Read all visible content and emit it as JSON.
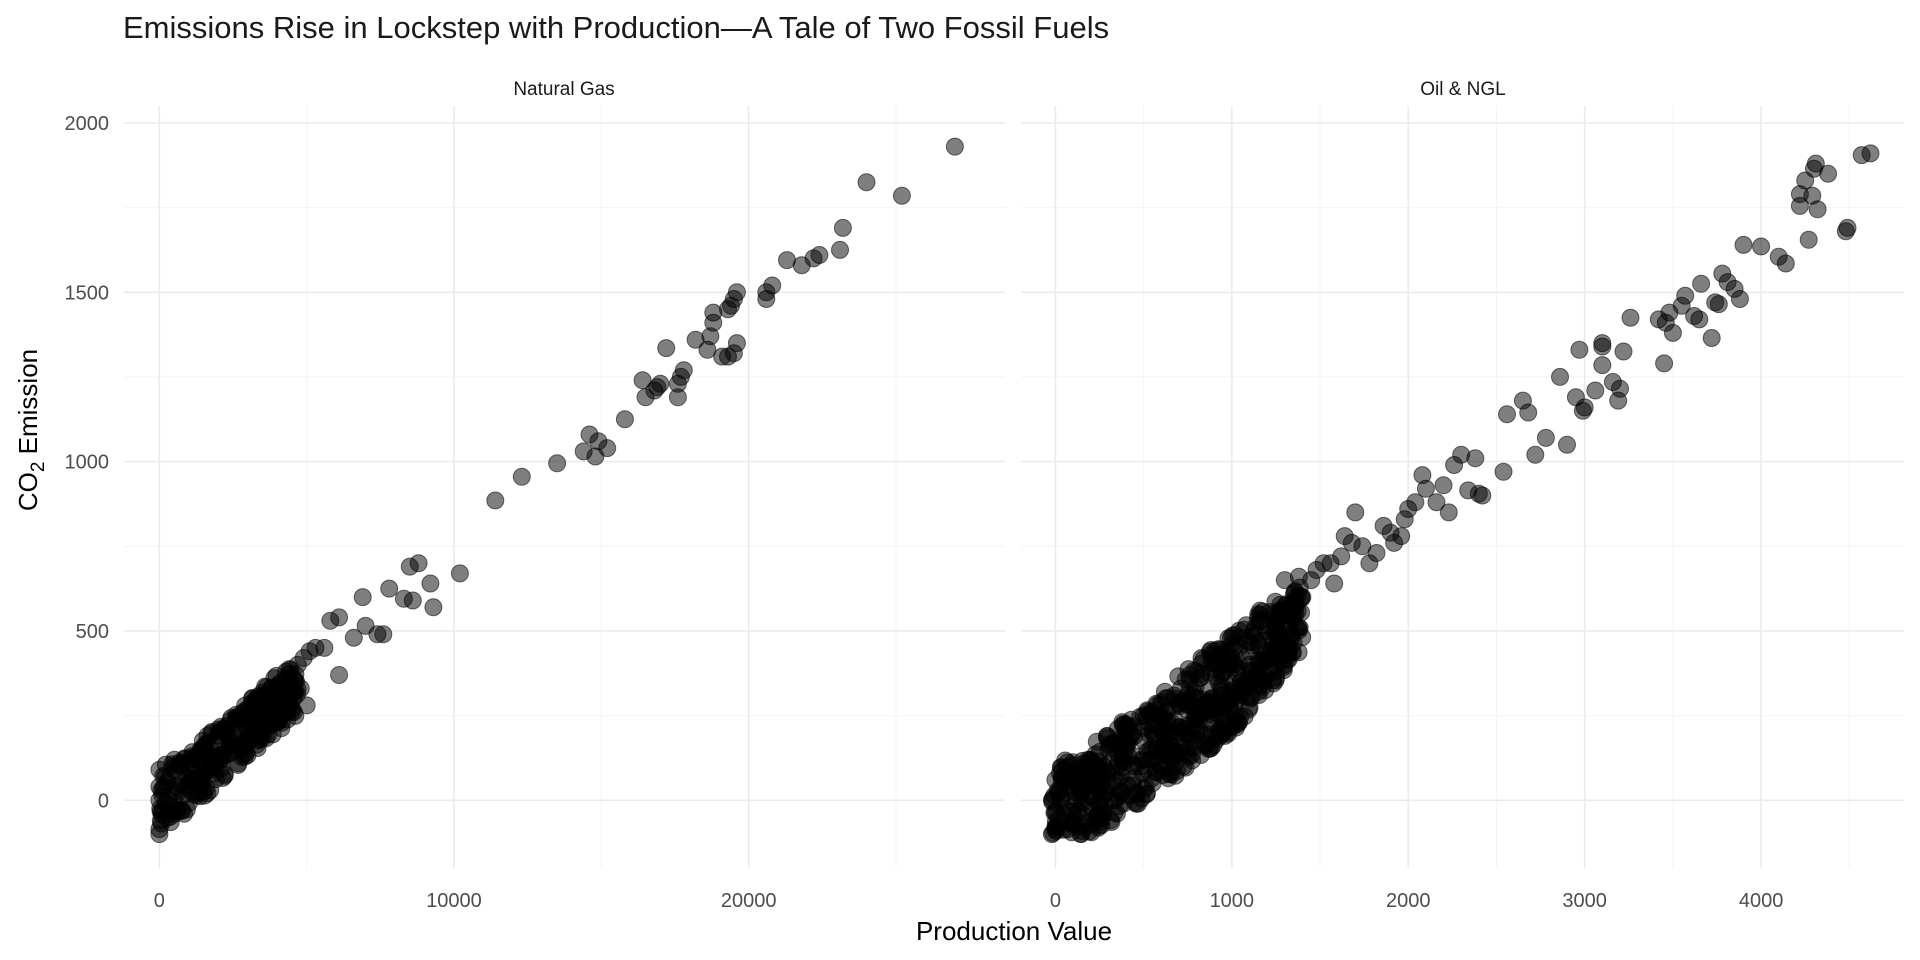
{
  "chart_data": {
    "type": "scatter",
    "title": "Emissions Rise in Lockstep with Production—A Tale of Two Fossil Fuels",
    "xlabel": "Production Value",
    "ylabel": {
      "prefix": "CO",
      "subscript": "2",
      "suffix": " Emission"
    },
    "ylim": [
      -200,
      2050
    ],
    "y_ticks": [
      0,
      500,
      1000,
      1500,
      2000
    ],
    "grid": true,
    "point_color": "#000000",
    "point_opacity": 0.5,
    "facets": [
      {
        "name": "Natural Gas",
        "xlim": [
          -1200,
          28700
        ],
        "x_ticks": [
          0,
          10000,
          20000
        ],
        "points": [
          [
            27000,
            1930
          ],
          [
            24000,
            1825
          ],
          [
            25200,
            1785
          ],
          [
            23200,
            1690
          ],
          [
            23100,
            1625
          ],
          [
            22400,
            1610
          ],
          [
            22200,
            1600
          ],
          [
            21800,
            1580
          ],
          [
            21300,
            1595
          ],
          [
            20800,
            1520
          ],
          [
            20600,
            1500
          ],
          [
            20600,
            1480
          ],
          [
            19600,
            1500
          ],
          [
            19500,
            1480
          ],
          [
            19400,
            1460
          ],
          [
            19300,
            1450
          ],
          [
            19600,
            1350
          ],
          [
            19500,
            1320
          ],
          [
            19300,
            1310
          ],
          [
            19100,
            1310
          ],
          [
            18800,
            1440
          ],
          [
            18800,
            1410
          ],
          [
            18700,
            1370
          ],
          [
            18600,
            1330
          ],
          [
            18200,
            1360
          ],
          [
            17800,
            1270
          ],
          [
            17700,
            1250
          ],
          [
            17600,
            1230
          ],
          [
            17600,
            1190
          ],
          [
            17200,
            1335
          ],
          [
            17000,
            1230
          ],
          [
            16900,
            1220
          ],
          [
            16400,
            1240
          ],
          [
            16500,
            1190
          ],
          [
            16800,
            1210
          ],
          [
            15800,
            1125
          ],
          [
            15200,
            1040
          ],
          [
            14900,
            1060
          ],
          [
            14800,
            1015
          ],
          [
            14600,
            1080
          ],
          [
            14400,
            1030
          ],
          [
            13500,
            995
          ],
          [
            12300,
            955
          ],
          [
            11400,
            885
          ],
          [
            10200,
            670
          ],
          [
            9300,
            570
          ],
          [
            9200,
            640
          ],
          [
            8800,
            700
          ],
          [
            8500,
            690
          ],
          [
            8600,
            590
          ],
          [
            8300,
            595
          ],
          [
            7800,
            625
          ],
          [
            7600,
            490
          ],
          [
            7400,
            490
          ],
          [
            7000,
            515
          ],
          [
            6900,
            600
          ],
          [
            6600,
            480
          ],
          [
            6100,
            370
          ],
          [
            6100,
            540
          ],
          [
            5800,
            530
          ],
          [
            5600,
            450
          ],
          [
            5300,
            450
          ],
          [
            5100,
            440
          ],
          [
            5000,
            280
          ],
          [
            4900,
            420
          ],
          [
            4800,
            330
          ],
          [
            4700,
            400
          ],
          [
            4500,
            270
          ],
          [
            4300,
            380
          ],
          [
            4300,
            290
          ],
          [
            4000,
            230
          ],
          [
            3900,
            360
          ],
          [
            3800,
            330
          ],
          [
            3600,
            220
          ],
          [
            3500,
            310
          ],
          [
            3300,
            200
          ],
          [
            3200,
            290
          ],
          [
            3000,
            180
          ],
          [
            2900,
            260
          ],
          [
            2700,
            160
          ],
          [
            2600,
            240
          ],
          [
            2400,
            140
          ],
          [
            2300,
            220
          ],
          [
            2100,
            120
          ],
          [
            2000,
            190
          ],
          [
            1800,
            100
          ],
          [
            1700,
            170
          ],
          [
            1500,
            80
          ],
          [
            1400,
            150
          ],
          [
            1200,
            60
          ],
          [
            1100,
            130
          ],
          [
            900,
            40
          ],
          [
            800,
            110
          ],
          [
            600,
            20
          ],
          [
            500,
            90
          ],
          [
            300,
            0
          ],
          [
            200,
            70
          ],
          [
            100,
            -30
          ],
          [
            50,
            -60
          ],
          [
            0,
            -85
          ],
          [
            0,
            40
          ],
          [
            0,
            90
          ],
          [
            0,
            0
          ],
          [
            0,
            -100
          ]
        ],
        "band": [
          {
            "x": 0,
            "y_lo": -100,
            "y_hi": 95
          },
          {
            "x": 1000,
            "y_lo": -30,
            "y_hi": 150
          },
          {
            "x": 2000,
            "y_lo": 50,
            "y_hi": 220
          },
          {
            "x": 3000,
            "y_lo": 130,
            "y_hi": 290
          },
          {
            "x": 4000,
            "y_lo": 200,
            "y_hi": 370
          },
          {
            "x": 4700,
            "y_lo": 250,
            "y_hi": 410
          }
        ],
        "band_count": 260
      },
      {
        "name": "Oil & NGL",
        "xlim": [
          -195,
          4810
        ],
        "x_ticks": [
          0,
          1000,
          2000,
          3000,
          4000
        ],
        "points": [
          [
            4620,
            1910
          ],
          [
            4570,
            1905
          ],
          [
            4490,
            1690
          ],
          [
            4480,
            1680
          ],
          [
            4380,
            1850
          ],
          [
            4310,
            1880
          ],
          [
            4300,
            1865
          ],
          [
            4290,
            1785
          ],
          [
            4250,
            1830
          ],
          [
            4220,
            1790
          ],
          [
            4220,
            1755
          ],
          [
            4320,
            1745
          ],
          [
            4270,
            1655
          ],
          [
            4140,
            1585
          ],
          [
            4100,
            1605
          ],
          [
            4000,
            1635
          ],
          [
            3900,
            1640
          ],
          [
            3880,
            1480
          ],
          [
            3850,
            1510
          ],
          [
            3810,
            1530
          ],
          [
            3780,
            1555
          ],
          [
            3760,
            1465
          ],
          [
            3740,
            1470
          ],
          [
            3720,
            1365
          ],
          [
            3660,
            1525
          ],
          [
            3650,
            1420
          ],
          [
            3620,
            1430
          ],
          [
            3570,
            1490
          ],
          [
            3550,
            1460
          ],
          [
            3500,
            1380
          ],
          [
            3480,
            1440
          ],
          [
            3460,
            1410
          ],
          [
            3450,
            1290
          ],
          [
            3420,
            1420
          ],
          [
            3260,
            1425
          ],
          [
            3220,
            1325
          ],
          [
            3200,
            1215
          ],
          [
            3190,
            1180
          ],
          [
            3160,
            1235
          ],
          [
            3100,
            1285
          ],
          [
            3060,
            1210
          ],
          [
            3000,
            1160
          ],
          [
            2990,
            1150
          ],
          [
            2970,
            1330
          ],
          [
            3100,
            1340
          ],
          [
            3100,
            1350
          ],
          [
            2950,
            1190
          ],
          [
            2900,
            1050
          ],
          [
            2860,
            1250
          ],
          [
            2780,
            1070
          ],
          [
            2720,
            1020
          ],
          [
            2680,
            1145
          ],
          [
            2650,
            1180
          ],
          [
            2560,
            1140
          ],
          [
            2540,
            970
          ],
          [
            2420,
            900
          ],
          [
            2400,
            905
          ],
          [
            2380,
            1010
          ],
          [
            2340,
            915
          ],
          [
            2300,
            1020
          ],
          [
            2260,
            990
          ],
          [
            2230,
            850
          ],
          [
            2200,
            930
          ],
          [
            2160,
            880
          ],
          [
            2100,
            920
          ],
          [
            2080,
            960
          ],
          [
            2040,
            880
          ],
          [
            2000,
            860
          ],
          [
            1980,
            830
          ],
          [
            1960,
            780
          ],
          [
            1920,
            760
          ],
          [
            1900,
            790
          ],
          [
            1860,
            810
          ],
          [
            1820,
            730
          ],
          [
            1780,
            700
          ],
          [
            1740,
            750
          ],
          [
            1700,
            850
          ],
          [
            1680,
            760
          ],
          [
            1640,
            780
          ],
          [
            1620,
            720
          ],
          [
            1580,
            640
          ],
          [
            1560,
            700
          ],
          [
            1520,
            700
          ],
          [
            1480,
            680
          ],
          [
            1450,
            650
          ],
          [
            1400,
            600
          ],
          [
            1380,
            660
          ],
          [
            1340,
            580
          ],
          [
            1300,
            650
          ],
          [
            1280,
            560
          ],
          [
            1250,
            520
          ],
          [
            1220,
            480
          ],
          [
            1200,
            500
          ],
          [
            1160,
            560
          ],
          [
            1100,
            400
          ],
          [
            1100,
            440
          ],
          [
            1050,
            350
          ],
          [
            1020,
            330
          ],
          [
            1000,
            460
          ],
          [
            950,
            400
          ],
          [
            900,
            250
          ],
          [
            880,
            430
          ],
          [
            850,
            280
          ],
          [
            800,
            380
          ],
          [
            780,
            220
          ],
          [
            750,
            310
          ],
          [
            700,
            200
          ],
          [
            680,
            300
          ],
          [
            620,
            170
          ],
          [
            600,
            280
          ],
          [
            550,
            150
          ],
          [
            500,
            250
          ],
          [
            450,
            100
          ],
          [
            400,
            200
          ],
          [
            350,
            60
          ],
          [
            300,
            150
          ],
          [
            250,
            40
          ],
          [
            200,
            120
          ],
          [
            150,
            0
          ],
          [
            100,
            80
          ],
          [
            50,
            -40
          ],
          [
            0,
            -80
          ],
          [
            0,
            60
          ],
          [
            -20,
            -100
          ],
          [
            -20,
            0
          ]
        ],
        "band": [
          {
            "x": -20,
            "y_lo": -100,
            "y_hi": 100
          },
          {
            "x": 200,
            "y_lo": -100,
            "y_hi": 160
          },
          {
            "x": 400,
            "y_lo": -40,
            "y_hi": 240
          },
          {
            "x": 600,
            "y_lo": 40,
            "y_hi": 320
          },
          {
            "x": 800,
            "y_lo": 120,
            "y_hi": 420
          },
          {
            "x": 1000,
            "y_lo": 200,
            "y_hi": 500
          },
          {
            "x": 1200,
            "y_lo": 320,
            "y_hi": 570
          },
          {
            "x": 1400,
            "y_lo": 450,
            "y_hi": 640
          }
        ],
        "band_count": 620
      }
    ]
  }
}
